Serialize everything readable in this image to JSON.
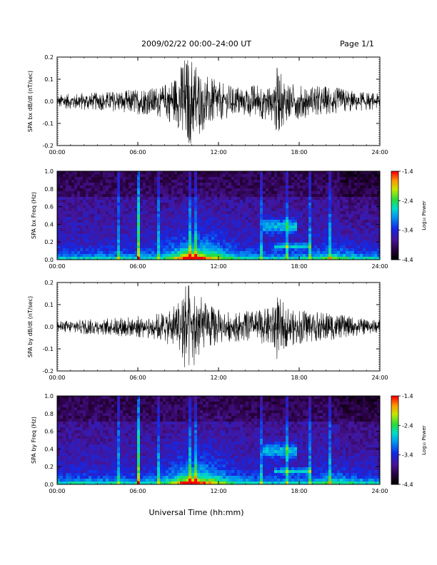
{
  "header": {
    "title": "2009/02/22  00:00–24:00 UT",
    "page": "Page 1/1"
  },
  "footer": {
    "xlabel": "Universal Time (hh:mm)"
  },
  "colorbar": {
    "label": "Log₁₀ Power",
    "ticks": [
      "-1.4",
      "-2.4",
      "-3.4",
      "-4.4"
    ]
  },
  "x_ticks": [
    "00:00",
    "06:00",
    "12:00",
    "18:00",
    "24:00"
  ],
  "chart_data": [
    {
      "type": "line",
      "ylabel": "SPA bx dB/dt (nT/sec)",
      "xlim": [
        0,
        24
      ],
      "ylim": [
        -0.2,
        0.2
      ],
      "y_ticks": [
        "0.2",
        "0.1",
        "0.0",
        "-0.1",
        "-0.2"
      ],
      "series": [
        {
          "x": [
            0,
            1,
            2,
            3,
            4,
            5,
            6,
            7,
            8,
            9,
            9.3,
            9.6,
            10,
            10.5,
            11,
            12,
            13,
            14,
            15,
            16,
            16.3,
            17,
            18,
            19,
            20,
            21,
            22,
            23,
            24
          ],
          "amplitude": [
            0.03,
            0.035,
            0.04,
            0.04,
            0.045,
            0.05,
            0.06,
            0.06,
            0.08,
            0.12,
            0.2,
            0.2,
            0.2,
            0.17,
            0.12,
            0.09,
            0.07,
            0.07,
            0.08,
            0.09,
            0.16,
            0.09,
            0.08,
            0.07,
            0.07,
            0.06,
            0.05,
            0.04,
            0.035
          ]
        }
      ]
    },
    {
      "type": "heatmap",
      "ylabel": "SPA bx Freq (Hz)",
      "xlim": [
        0,
        24
      ],
      "ylim": [
        0,
        1.0
      ],
      "y_ticks": [
        "1.0",
        "0.8",
        "0.6",
        "0.4",
        "0.2",
        "0.0"
      ],
      "clim": [
        -4.4,
        -1.4
      ]
    },
    {
      "type": "line",
      "ylabel": "SPA by dB/dt (nT/sec)",
      "xlim": [
        0,
        24
      ],
      "ylim": [
        -0.2,
        0.2
      ],
      "y_ticks": [
        "0.2",
        "0.1",
        "0.0",
        "-0.1",
        "-0.2"
      ],
      "series": [
        {
          "x": [
            0,
            1,
            2,
            3,
            4,
            5,
            6,
            7,
            8,
            9,
            9.3,
            9.6,
            10,
            10.5,
            11,
            12,
            13,
            14,
            15,
            16,
            16.3,
            17,
            18,
            19,
            20,
            21,
            22,
            23,
            24
          ],
          "amplitude": [
            0.025,
            0.03,
            0.035,
            0.035,
            0.04,
            0.045,
            0.05,
            0.055,
            0.07,
            0.12,
            0.2,
            0.2,
            0.2,
            0.16,
            0.11,
            0.08,
            0.065,
            0.07,
            0.075,
            0.09,
            0.16,
            0.09,
            0.08,
            0.07,
            0.065,
            0.055,
            0.045,
            0.035,
            0.03
          ]
        }
      ]
    },
    {
      "type": "heatmap",
      "ylabel": "SPA by Freq (Hz)",
      "xlim": [
        0,
        24
      ],
      "ylim": [
        0,
        1.0
      ],
      "y_ticks": [
        "1.0",
        "0.8",
        "0.6",
        "0.4",
        "0.2",
        "0.0"
      ],
      "clim": [
        -4.4,
        -1.4
      ]
    }
  ]
}
